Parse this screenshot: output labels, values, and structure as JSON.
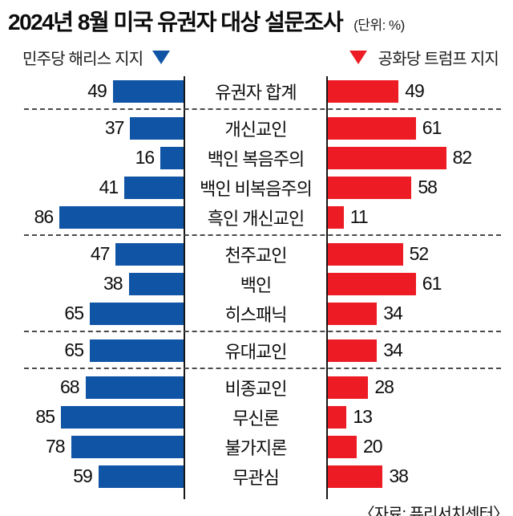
{
  "title": "2024년 8월 미국 유권자 대상 설문조사",
  "unit_note": "(단위: %)",
  "legend": {
    "left_label": "민주당 해리스 지지",
    "right_label": "공화당 트럼프 지지"
  },
  "source": "〈자료: 퓨리서치센터〉",
  "colors": {
    "harris_blue": "#0f54a5",
    "trump_red": "#ed1c24",
    "axis_line": "#161616",
    "divider_dash": "#4a4a4a"
  },
  "chart_data": {
    "type": "bar",
    "orientation": "horizontal-diverging",
    "title": "2024년 8월 미국 유권자 대상 설문조사",
    "unit": "%",
    "categories": [
      "유권자 합계",
      "개신교인",
      "백인 복음주의",
      "백인 비복음주의",
      "흑인 개신교인",
      "천주교인",
      "백인",
      "히스패닉",
      "유대교인",
      "비종교인",
      "무신론",
      "불가지론",
      "무관심"
    ],
    "series": [
      {
        "name": "민주당 해리스 지지",
        "side": "left",
        "color": "#0f54a5",
        "values": [
          49,
          37,
          16,
          41,
          86,
          47,
          38,
          65,
          65,
          68,
          85,
          78,
          59
        ]
      },
      {
        "name": "공화당 트럼프 지지",
        "side": "right",
        "color": "#ed1c24",
        "values": [
          49,
          61,
          82,
          58,
          11,
          52,
          61,
          34,
          34,
          28,
          13,
          20,
          38
        ]
      }
    ],
    "separators_after": [
      0,
      4,
      7,
      8
    ],
    "xlim": [
      0,
      100
    ],
    "grid": false,
    "legend_position": "top",
    "source": "퓨리서치센터"
  }
}
